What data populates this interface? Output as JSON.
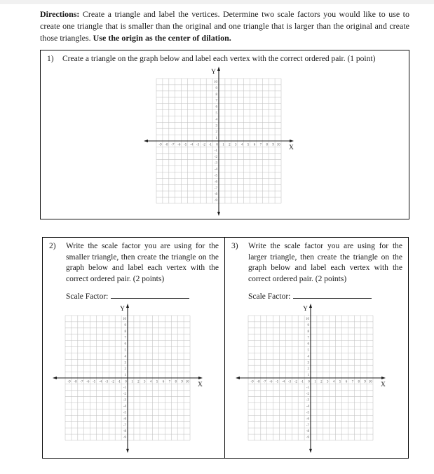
{
  "directions": {
    "label": "Directions:",
    "body": " Create a triangle and label the vertices. Determine two scale factors you would like to use to create one triangle that is smaller than the original and one triangle that is larger than the original and create those triangles. ",
    "emphasis": "Use the origin as the center of dilation."
  },
  "q1": {
    "number": "1)",
    "text": "Create a triangle on the graph below and label each vertex with the correct ordered pair. (1 point)"
  },
  "q2": {
    "number": "2)",
    "text": "Write the scale factor you are using for the smaller triangle, then create the triangle on the graph below and label each vertex with the correct ordered pair. (2 points)",
    "scale_factor_label": "Scale Factor:",
    "scale_factor_value": ""
  },
  "q3": {
    "number": "3)",
    "text": "Write the scale factor you are using for the larger triangle, then create the triangle on the graph below and label each vertex with the correct ordered pair. (2 points)",
    "scale_factor_label": "Scale Factor:",
    "scale_factor_value": ""
  },
  "grid": {
    "x_axis_label": "X",
    "y_axis_label": "Y",
    "x_min": -10,
    "x_max": 10,
    "y_min": -10,
    "y_max": 10,
    "x_tick_labels": [
      -9,
      -8,
      -7,
      -6,
      -5,
      -4,
      -3,
      -2,
      -1,
      0,
      1,
      2,
      3,
      4,
      5,
      6,
      7,
      8,
      9,
      10
    ],
    "y_tick_labels": [
      10,
      9,
      8,
      7,
      6,
      5,
      4,
      3,
      2,
      1,
      -1,
      -2,
      -3,
      -4,
      -5,
      -6,
      -7,
      -8,
      -9
    ],
    "colors": {
      "grid_line": "#c2c2c2",
      "axis": "#1c1c1c",
      "tick_text": "#5a5a5a",
      "axis_text": "#222222"
    }
  }
}
